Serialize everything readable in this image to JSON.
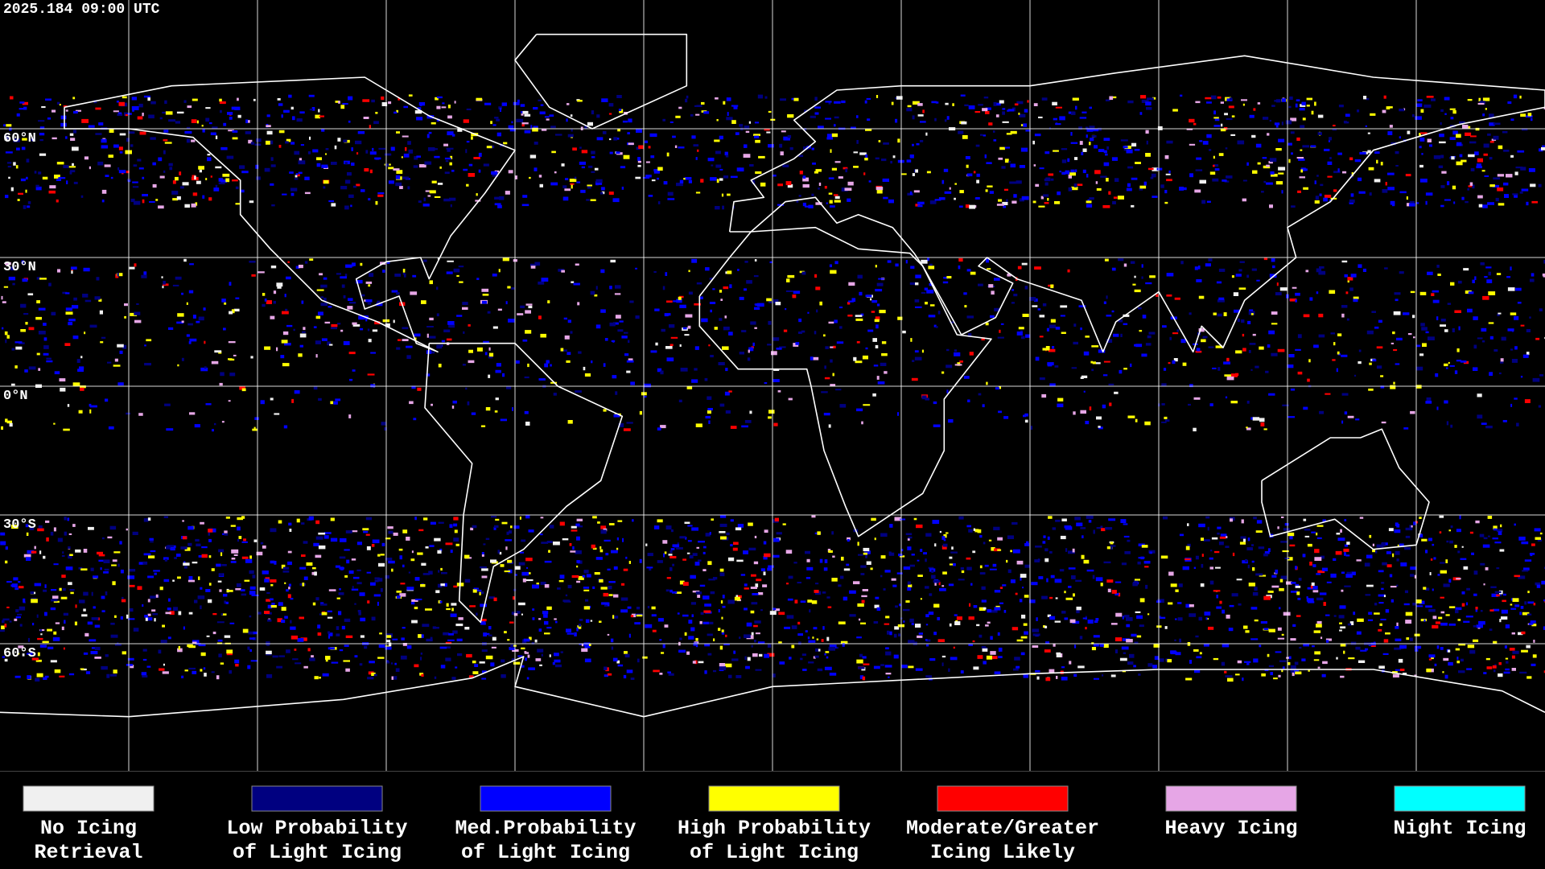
{
  "header": {
    "timestamp": "2025.184 09:00 UTC"
  },
  "map": {
    "latitude_labels": [
      "60°N",
      "30°N",
      "0°N",
      "30°S",
      "60°S"
    ]
  },
  "legend": {
    "items": [
      {
        "label": [
          "No Icing",
          "Retrieval"
        ],
        "color": "#f0f0f0"
      },
      {
        "label": [
          "Low Probability",
          "of Light Icing"
        ],
        "color": "#000080"
      },
      {
        "label": [
          "Med.Probability",
          "of Light Icing"
        ],
        "color": "#0000ff"
      },
      {
        "label": [
          "High Probability",
          "of Light Icing"
        ],
        "color": "#ffff00"
      },
      {
        "label": [
          "Moderate/Greater",
          "Icing Likely"
        ],
        "color": "#ff0000"
      },
      {
        "label": [
          "Heavy Icing"
        ],
        "color": "#e6a6e6"
      },
      {
        "label": [
          "Night Icing"
        ],
        "color": "#00ffff"
      }
    ]
  }
}
